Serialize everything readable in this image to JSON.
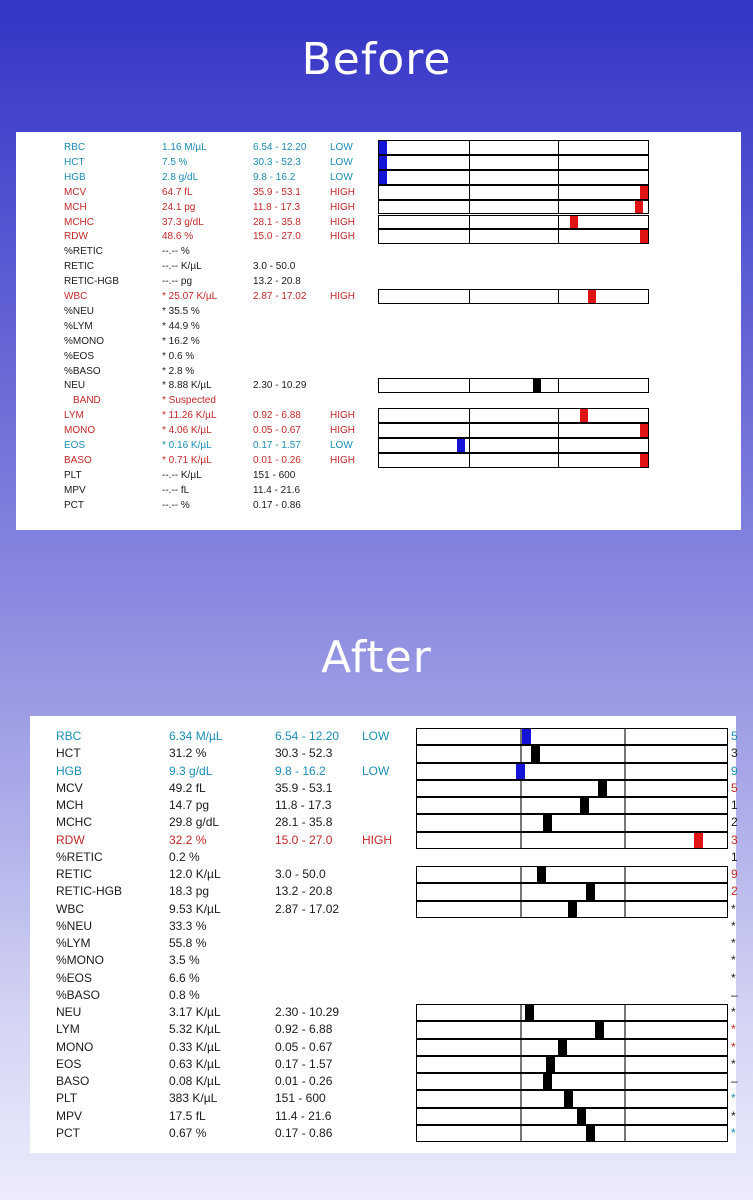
{
  "headings": {
    "before": "Before",
    "after": "After"
  },
  "before": {
    "rows": [
      {
        "name": "RBC",
        "value": "1.16 M/µL",
        "range": "6.54 - 12.20",
        "flag": "LOW",
        "color": "blue",
        "bar": true,
        "marker": 0.0,
        "mcolor": "blue"
      },
      {
        "name": "HCT",
        "value": "7.5 %",
        "range": "30.3 - 52.3",
        "flag": "LOW",
        "color": "blue",
        "bar": true,
        "marker": 0.0,
        "mcolor": "blue"
      },
      {
        "name": "HGB",
        "value": "2.8 g/dL",
        "range": "9.8 - 16.2",
        "flag": "LOW",
        "color": "blue",
        "bar": true,
        "marker": 0.0,
        "mcolor": "blue"
      },
      {
        "name": "MCV",
        "value": "64.7 fL",
        "range": "35.9 - 53.1",
        "flag": "HIGH",
        "color": "red",
        "bar": true,
        "marker": 1.0,
        "mcolor": "red"
      },
      {
        "name": "MCH",
        "value": "24.1 pg",
        "range": "11.8 - 17.3",
        "flag": "HIGH",
        "color": "red",
        "bar": true,
        "marker": 0.98,
        "mcolor": "red"
      },
      {
        "name": "MCHC",
        "value": "37.3 g/dL",
        "range": "28.1 - 35.8",
        "flag": "HIGH",
        "color": "red",
        "bar": true,
        "marker": 0.73,
        "mcolor": "red"
      },
      {
        "name": "RDW",
        "value": "48.6 %",
        "range": "15.0 - 27.0",
        "flag": "HIGH",
        "color": "red",
        "bar": true,
        "marker": 1.0,
        "mcolor": "red"
      },
      {
        "name": "%RETIC",
        "value": "--.-- %",
        "range": "",
        "flag": "",
        "color": "black",
        "bar": false
      },
      {
        "name": "RETIC",
        "value": "--.-- K/µL",
        "range": "3.0 - 50.0",
        "flag": "",
        "color": "black",
        "bar": false
      },
      {
        "name": "RETIC-HGB",
        "value": "--.-- pg",
        "range": "13.2 - 20.8",
        "flag": "",
        "color": "black",
        "bar": false
      },
      {
        "name": "WBC",
        "value": "* 25.07 K/µL",
        "range": "2.87 - 17.02",
        "flag": "HIGH",
        "color": "red",
        "bar": true,
        "marker": 0.8,
        "mcolor": "red"
      },
      {
        "name": "%NEU",
        "value": "* 35.5 %",
        "range": "",
        "flag": "",
        "color": "black",
        "bar": false
      },
      {
        "name": "%LYM",
        "value": "* 44.9 %",
        "range": "",
        "flag": "",
        "color": "black",
        "bar": false
      },
      {
        "name": "%MONO",
        "value": "* 16.2 %",
        "range": "",
        "flag": "",
        "color": "black",
        "bar": false
      },
      {
        "name": "%EOS",
        "value": "* 0.6 %",
        "range": "",
        "flag": "",
        "color": "black",
        "bar": false
      },
      {
        "name": "%BASO",
        "value": "* 2.8 %",
        "range": "",
        "flag": "",
        "color": "black",
        "bar": false
      },
      {
        "name": "NEU",
        "value": "* 8.88 K/µL",
        "range": "2.30 - 10.29",
        "flag": "",
        "color": "black",
        "bar": true,
        "marker": 0.59,
        "mcolor": "black"
      },
      {
        "name": "BAND",
        "value": "* Suspected",
        "range": "",
        "flag": "",
        "color": "red",
        "bar": false,
        "indent": true
      },
      {
        "name": "LYM",
        "value": "* 11.26 K/µL",
        "range": "0.92 - 6.88",
        "flag": "HIGH",
        "color": "red",
        "bar": true,
        "marker": 0.77,
        "mcolor": "red"
      },
      {
        "name": "MONO",
        "value": "* 4.06 K/µL",
        "range": "0.05 - 0.67",
        "flag": "HIGH",
        "color": "red",
        "bar": true,
        "marker": 1.0,
        "mcolor": "red"
      },
      {
        "name": "EOS",
        "value": "* 0.16 K/µL",
        "range": "0.17 - 1.57",
        "flag": "LOW",
        "color": "blue",
        "bar": true,
        "marker": 0.3,
        "mcolor": "blue"
      },
      {
        "name": "BASO",
        "value": "* 0.71 K/µL",
        "range": "0.01 - 0.26",
        "flag": "HIGH",
        "color": "red",
        "bar": true,
        "marker": 1.0,
        "mcolor": "red"
      },
      {
        "name": "PLT",
        "value": "--.-- K/µL",
        "range": "151 - 600",
        "flag": "",
        "color": "black",
        "bar": false
      },
      {
        "name": "MPV",
        "value": "--.-- fL",
        "range": "11.4 - 21.6",
        "flag": "",
        "color": "black",
        "bar": false
      },
      {
        "name": "PCT",
        "value": "--.-- %",
        "range": "0.17 - 0.86",
        "flag": "",
        "color": "black",
        "bar": false
      }
    ]
  },
  "after": {
    "rows": [
      {
        "name": "RBC",
        "value": "6.34 M/µL",
        "range": "6.54 - 12.20",
        "flag": "LOW",
        "color": "blue",
        "bar": true,
        "marker": 0.35,
        "mcolor": "blue",
        "edge": "5",
        "ecolor": "blue"
      },
      {
        "name": "HCT",
        "value": "31.2 %",
        "range": "30.3 - 52.3",
        "flag": "",
        "color": "black",
        "bar": true,
        "marker": 0.38,
        "mcolor": "black",
        "edge": "3",
        "ecolor": "black"
      },
      {
        "name": "HGB",
        "value": "9.3 g/dL",
        "range": "9.8 - 16.2",
        "flag": "LOW",
        "color": "blue",
        "bar": true,
        "marker": 0.33,
        "mcolor": "blue",
        "edge": "9",
        "ecolor": "blue"
      },
      {
        "name": "MCV",
        "value": "49.2 fL",
        "range": "35.9 - 53.1",
        "flag": "",
        "color": "black",
        "bar": true,
        "marker": 0.6,
        "mcolor": "black",
        "edge": "5",
        "ecolor": "red"
      },
      {
        "name": "MCH",
        "value": "14.7 pg",
        "range": "11.8 - 17.3",
        "flag": "",
        "color": "black",
        "bar": true,
        "marker": 0.54,
        "mcolor": "black",
        "edge": "1",
        "ecolor": "black"
      },
      {
        "name": "MCHC",
        "value": "29.8 g/dL",
        "range": "28.1 - 35.8",
        "flag": "",
        "color": "black",
        "bar": true,
        "marker": 0.42,
        "mcolor": "black",
        "edge": "2",
        "ecolor": "black"
      },
      {
        "name": "RDW",
        "value": "32.2 %",
        "range": "15.0 - 27.0",
        "flag": "HIGH",
        "color": "red",
        "bar": true,
        "marker": 0.92,
        "mcolor": "red",
        "edge": "3",
        "ecolor": "red"
      },
      {
        "name": "%RETIC",
        "value": "0.2 %",
        "range": "",
        "flag": "",
        "color": "black",
        "bar": false,
        "edge": "1",
        "ecolor": "black"
      },
      {
        "name": "RETIC",
        "value": "12.0 K/µL",
        "range": "3.0 - 50.0",
        "flag": "",
        "color": "black",
        "bar": true,
        "marker": 0.4,
        "mcolor": "black",
        "edge": "9",
        "ecolor": "red"
      },
      {
        "name": "RETIC-HGB",
        "value": "18.3 pg",
        "range": "13.2 - 20.8",
        "flag": "",
        "color": "black",
        "bar": true,
        "marker": 0.56,
        "mcolor": "black",
        "edge": "2",
        "ecolor": "red"
      },
      {
        "name": "WBC",
        "value": "9.53 K/µL",
        "range": "2.87 - 17.02",
        "flag": "",
        "color": "black",
        "bar": true,
        "marker": 0.5,
        "mcolor": "black",
        "edge": "*",
        "ecolor": "black"
      },
      {
        "name": "%NEU",
        "value": "33.3 %",
        "range": "",
        "flag": "",
        "color": "black",
        "bar": false,
        "edge": "*",
        "ecolor": "black"
      },
      {
        "name": "%LYM",
        "value": "55.8 %",
        "range": "",
        "flag": "",
        "color": "black",
        "bar": false,
        "edge": "*",
        "ecolor": "black"
      },
      {
        "name": "%MONO",
        "value": "3.5 %",
        "range": "",
        "flag": "",
        "color": "black",
        "bar": false,
        "edge": "*",
        "ecolor": "black"
      },
      {
        "name": "%EOS",
        "value": "6.6 %",
        "range": "",
        "flag": "",
        "color": "black",
        "bar": false,
        "edge": "*",
        "ecolor": "black"
      },
      {
        "name": "%BASO",
        "value": "0.8 %",
        "range": "",
        "flag": "",
        "color": "black",
        "bar": false,
        "edge": "–",
        "ecolor": "black"
      },
      {
        "name": "NEU",
        "value": "3.17 K/µL",
        "range": "2.30 - 10.29",
        "flag": "",
        "color": "black",
        "bar": true,
        "marker": 0.36,
        "mcolor": "black",
        "edge": "*",
        "ecolor": "black"
      },
      {
        "name": "LYM",
        "value": "5.32 K/µL",
        "range": "0.92 - 6.88",
        "flag": "",
        "color": "black",
        "bar": true,
        "marker": 0.59,
        "mcolor": "black",
        "edge": "*",
        "ecolor": "red"
      },
      {
        "name": "MONO",
        "value": "0.33 K/µL",
        "range": "0.05 - 0.67",
        "flag": "",
        "color": "black",
        "bar": true,
        "marker": 0.47,
        "mcolor": "black",
        "edge": "*",
        "ecolor": "red"
      },
      {
        "name": "EOS",
        "value": "0.63 K/µL",
        "range": "0.17 - 1.57",
        "flag": "",
        "color": "black",
        "bar": true,
        "marker": 0.43,
        "mcolor": "black",
        "edge": "*",
        "ecolor": "black"
      },
      {
        "name": "BASO",
        "value": "0.08 K/µL",
        "range": "0.01 - 0.26",
        "flag": "",
        "color": "black",
        "bar": true,
        "marker": 0.42,
        "mcolor": "black",
        "edge": "–",
        "ecolor": "black"
      },
      {
        "name": "PLT",
        "value": "383 K/µL",
        "range": "151 - 600",
        "flag": "",
        "color": "black",
        "bar": true,
        "marker": 0.49,
        "mcolor": "black",
        "edge": "*",
        "ecolor": "blue"
      },
      {
        "name": "MPV",
        "value": "17.5 fL",
        "range": "11.4 - 21.6",
        "flag": "",
        "color": "black",
        "bar": true,
        "marker": 0.53,
        "mcolor": "black",
        "edge": "*",
        "ecolor": "black"
      },
      {
        "name": "PCT",
        "value": "0.67 %",
        "range": "0.17 - 0.86",
        "flag": "",
        "color": "black",
        "bar": true,
        "marker": 0.56,
        "mcolor": "black",
        "edge": "*",
        "ecolor": "blue"
      }
    ]
  }
}
